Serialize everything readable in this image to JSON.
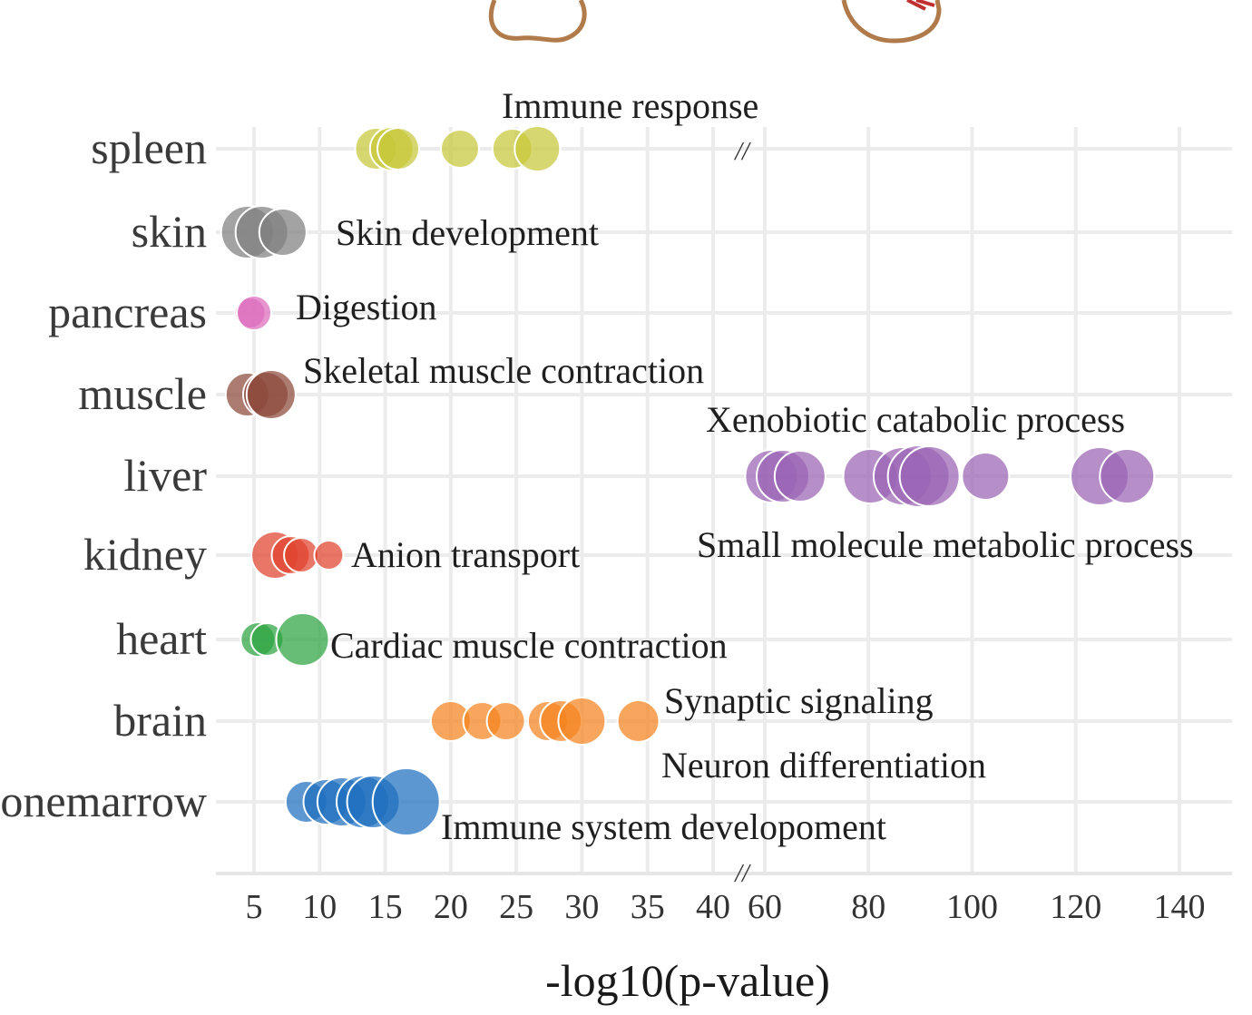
{
  "chart_data": {
    "type": "scatter",
    "xlabel": "-log10(p-value)",
    "x_axis_segments": [
      {
        "range": [
          2,
          42
        ],
        "ticks": [
          5,
          10,
          15,
          20,
          25,
          30,
          35,
          40
        ]
      },
      {
        "range": [
          51,
          147
        ],
        "ticks": [
          60,
          80,
          100,
          120,
          140
        ]
      }
    ],
    "axis_break_symbol": "//",
    "categories": [
      "spleen",
      "skin",
      "pancreas",
      "muscle",
      "liver",
      "kidney",
      "heart",
      "brain",
      "bonemarrow"
    ],
    "series": [
      {
        "name": "spleen",
        "color": "#c8c83a",
        "points": [
          {
            "x": 14.3,
            "size": 0.55
          },
          {
            "x": 15.5,
            "size": 0.58
          },
          {
            "x": 16.0,
            "size": 0.55
          },
          {
            "x": 20.7,
            "size": 0.5
          },
          {
            "x": 24.7,
            "size": 0.52
          },
          {
            "x": 26.6,
            "size": 0.6
          }
        ]
      },
      {
        "name": "skin",
        "color": "#808080",
        "points": [
          {
            "x": 4.5,
            "size": 0.7
          },
          {
            "x": 5.6,
            "size": 0.68
          },
          {
            "x": 7.2,
            "size": 0.62
          }
        ]
      },
      {
        "name": "pancreas",
        "color": "#dd6cbd",
        "points": [
          {
            "x": 4.7,
            "size": 0.4
          },
          {
            "x": 5.0,
            "size": 0.45
          }
        ]
      },
      {
        "name": "muscle",
        "color": "#8c4a3a",
        "points": [
          {
            "x": 4.5,
            "size": 0.58
          },
          {
            "x": 5.9,
            "size": 0.6
          },
          {
            "x": 6.3,
            "size": 0.65
          }
        ]
      },
      {
        "name": "liver",
        "color": "#9a64b4",
        "points": [
          {
            "x": 61.3,
            "size": 0.68
          },
          {
            "x": 63.5,
            "size": 0.7
          },
          {
            "x": 66.8,
            "size": 0.66
          },
          {
            "x": 80.4,
            "size": 0.72
          },
          {
            "x": 86.6,
            "size": 0.75
          },
          {
            "x": 89.7,
            "size": 0.82
          },
          {
            "x": 91.8,
            "size": 0.78
          },
          {
            "x": 102.6,
            "size": 0.62
          },
          {
            "x": 124.6,
            "size": 0.75
          },
          {
            "x": 129.9,
            "size": 0.72
          }
        ]
      },
      {
        "name": "kidney",
        "color": "#e0432e",
        "points": [
          {
            "x": 6.6,
            "size": 0.62
          },
          {
            "x": 7.8,
            "size": 0.5
          },
          {
            "x": 8.6,
            "size": 0.45
          },
          {
            "x": 10.7,
            "size": 0.38
          }
        ]
      },
      {
        "name": "heart",
        "color": "#2ca440",
        "points": [
          {
            "x": 5.3,
            "size": 0.45
          },
          {
            "x": 6.0,
            "size": 0.42
          },
          {
            "x": 8.7,
            "size": 0.68
          }
        ]
      },
      {
        "name": "brain",
        "color": "#f5841f",
        "points": [
          {
            "x": 20.0,
            "size": 0.52
          },
          {
            "x": 22.4,
            "size": 0.5
          },
          {
            "x": 24.2,
            "size": 0.5
          },
          {
            "x": 27.4,
            "size": 0.52
          },
          {
            "x": 28.4,
            "size": 0.55
          },
          {
            "x": 30.0,
            "size": 0.62
          },
          {
            "x": 34.3,
            "size": 0.55
          }
        ]
      },
      {
        "name": "bonemarrow",
        "color": "#1f6fbf",
        "points": [
          {
            "x": 9.0,
            "size": 0.55
          },
          {
            "x": 10.5,
            "size": 0.6
          },
          {
            "x": 11.7,
            "size": 0.65
          },
          {
            "x": 13.3,
            "size": 0.68
          },
          {
            "x": 14.1,
            "size": 0.7
          },
          {
            "x": 16.6,
            "size": 0.88
          }
        ]
      }
    ],
    "annotations": [
      {
        "text": "Immune response",
        "category": "spleen"
      },
      {
        "text": "Skin development",
        "category": "skin"
      },
      {
        "text": "Digestion",
        "category": "pancreas"
      },
      {
        "text": "Skeletal muscle contraction",
        "category": "muscle"
      },
      {
        "text": "Xenobiotic catabolic process",
        "category": "liver"
      },
      {
        "text": "Small molecule metabolic process",
        "category": "liver"
      },
      {
        "text": "Anion transport",
        "category": "kidney"
      },
      {
        "text": "Cardiac muscle contraction",
        "category": "heart"
      },
      {
        "text": "Synaptic signaling",
        "category": "brain"
      },
      {
        "text": "Neuron differentiation",
        "category": "brain"
      },
      {
        "text": "Immune system developoment",
        "category": "bonemarrow"
      }
    ]
  },
  "colors": {
    "grid": "#ececec",
    "text": "#333333"
  }
}
